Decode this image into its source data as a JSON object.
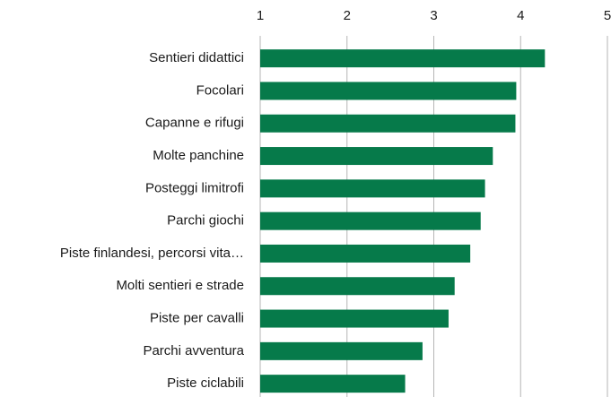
{
  "chart_data": {
    "type": "hbar",
    "categories": [
      "Sentieri didattici",
      "Focolari",
      "Capanne e rifugi",
      "Molte panchine",
      "Posteggi limitrofi",
      "Parchi giochi",
      "Piste finlandesi, percorsi vita…",
      "Molti sentieri e strade",
      "Piste per cavalli",
      "Parchi avventura",
      "Piste ciclabili"
    ],
    "values": [
      4.28,
      3.95,
      3.94,
      3.68,
      3.59,
      3.54,
      3.42,
      3.24,
      3.17,
      2.87,
      2.67
    ],
    "color": "#067a4a",
    "xlim": [
      1,
      5
    ],
    "xticks": [
      1,
      2,
      3,
      4,
      5
    ],
    "grid": true
  }
}
